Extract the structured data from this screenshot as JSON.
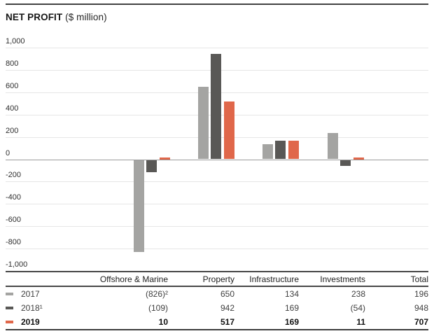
{
  "title": {
    "main": "NET PROFIT",
    "unit": "($ million)"
  },
  "colors": {
    "series_2017": "#a4a4a2",
    "series_2018": "#595856",
    "series_2019": "#e0674a",
    "gridline": "#e6e6e6",
    "zero_line": "#9a9a9a",
    "rule_dark": "#474747"
  },
  "chart_data": {
    "type": "bar",
    "title": "NET PROFIT ($ million)",
    "categories": [
      "Offshore & Marine",
      "Property",
      "Infrastructure",
      "Investments"
    ],
    "series": [
      {
        "name": "2017",
        "color": "#a4a4a2",
        "values": [
          -826,
          650,
          134,
          238
        ]
      },
      {
        "name": "2018¹",
        "color": "#595856",
        "values": [
          -109,
          942,
          169,
          -54
        ]
      },
      {
        "name": "2019",
        "color": "#e0674a",
        "values": [
          10,
          517,
          169,
          11
        ]
      }
    ],
    "ylim": [
      -1000,
      1000
    ],
    "ytick_step": 200,
    "ytick_labels": [
      "1,000",
      "800",
      "600",
      "400",
      "200",
      "0",
      "-200",
      "-400",
      "-600",
      "-800",
      "-1,000"
    ],
    "grid": true,
    "legend_position": "table-left",
    "note": "Total column values (2017: 196, 2018: 948, 2019: 707) shown in table only, not plotted"
  },
  "table": {
    "columns": [
      "",
      "Offshore & Marine",
      "Property",
      "Infrastructure",
      "Investments",
      "Total"
    ],
    "rows": [
      {
        "label": "2017",
        "swatch": "#a4a4a2",
        "bold": false,
        "values": [
          "(826)²",
          "650",
          "134",
          "238",
          "196"
        ]
      },
      {
        "label": "2018¹",
        "swatch": "#595856",
        "bold": false,
        "values": [
          "(109)",
          "942",
          "169",
          "(54)",
          "948"
        ]
      },
      {
        "label": "2019",
        "swatch": "#e0674a",
        "bold": true,
        "values": [
          "10",
          "517",
          "169",
          "11",
          "707"
        ]
      }
    ]
  }
}
